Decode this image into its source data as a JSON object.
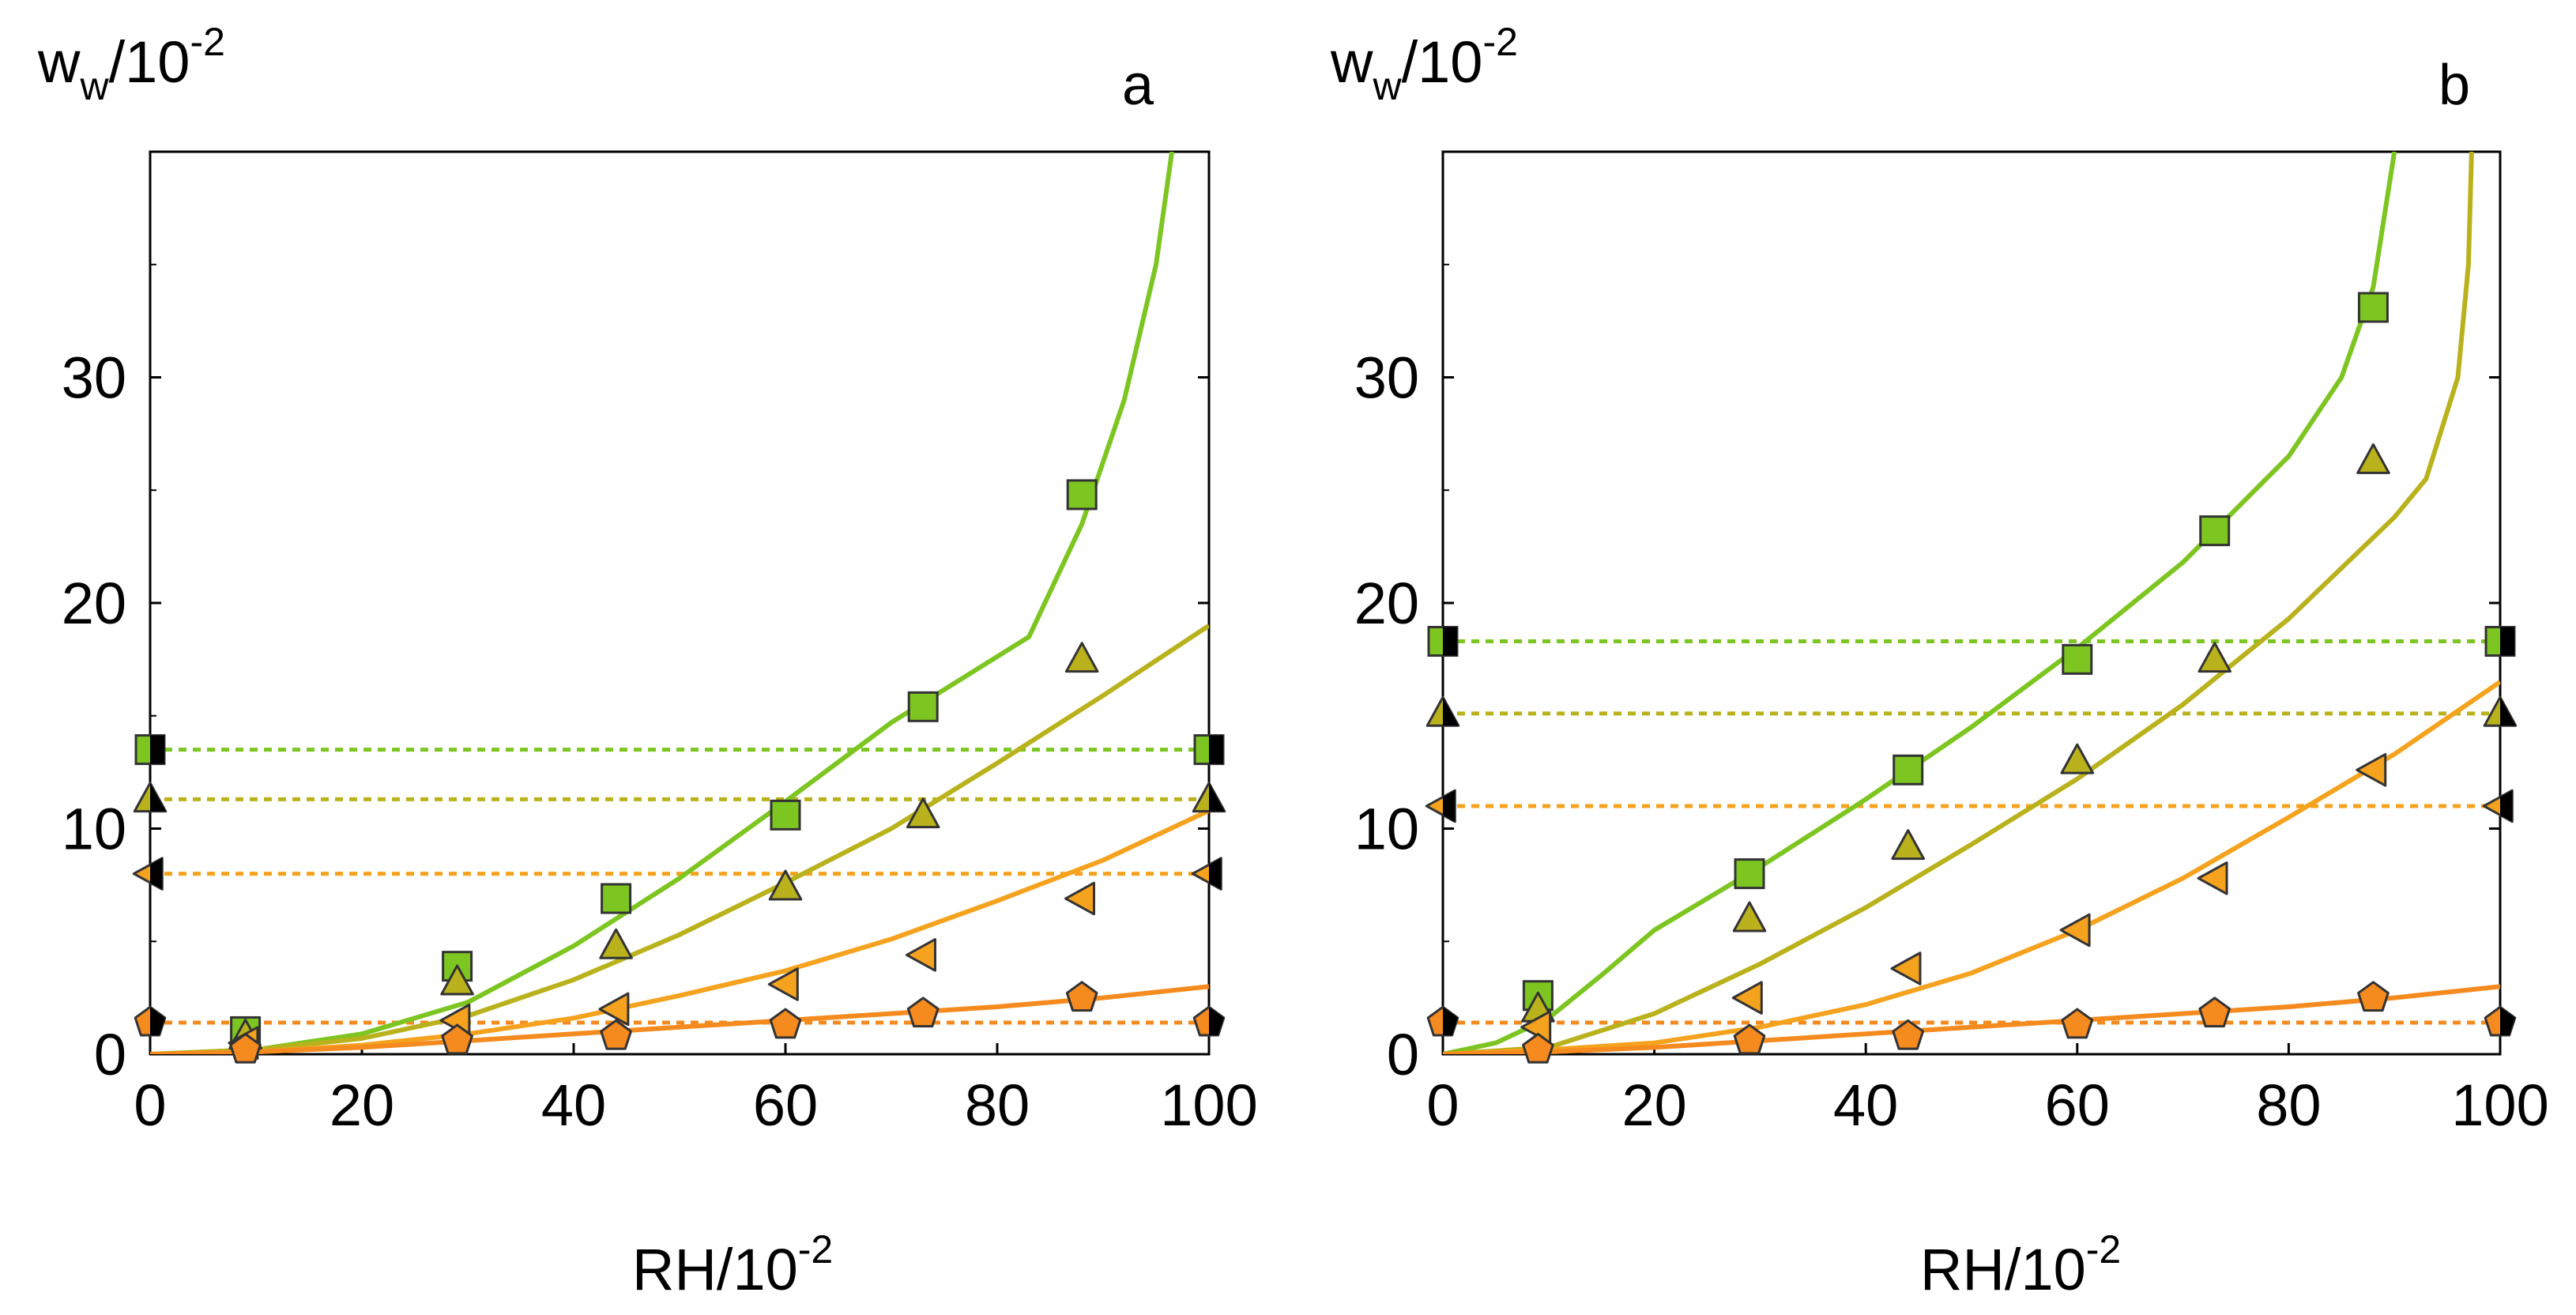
{
  "chart_data": [
    {
      "type": "scatter",
      "panel_label": "a",
      "ylabel": {
        "main": "w",
        "sub": "w",
        "denom": "/10",
        "exp": "-2"
      },
      "xlabel": {
        "main": "RH/10",
        "exp": "-2"
      },
      "xlim": [
        0,
        100
      ],
      "ylim": [
        0,
        40
      ],
      "xticks": [
        "0",
        "20",
        "40",
        "60",
        "80",
        "100"
      ],
      "yticks": [
        "0",
        "10",
        "20",
        "30"
      ],
      "colors": {
        "green": "#7dc520",
        "olive": "#b9b21d",
        "orange": "#f5a21e",
        "deep": "#f58a1e"
      },
      "series": [
        {
          "name": "square",
          "marker": "square",
          "color": "#7dc520",
          "points": [
            [
              9,
              1.0
            ],
            [
              29,
              3.9
            ],
            [
              44,
              6.9
            ],
            [
              60,
              10.6
            ],
            [
              73,
              15.4
            ],
            [
              88,
              24.8
            ]
          ],
          "fit": [
            [
              0,
              0
            ],
            [
              10,
              0.2
            ],
            [
              20,
              0.9
            ],
            [
              30,
              2.3
            ],
            [
              40,
              4.8
            ],
            [
              50,
              7.8
            ],
            [
              60,
              11.2
            ],
            [
              70,
              14.7
            ],
            [
              83,
              18.5
            ],
            [
              88,
              23.5
            ],
            [
              92,
              29.0
            ],
            [
              95,
              35.0
            ],
            [
              96.5,
              40.0
            ]
          ],
          "dry_level": 13.5,
          "dry_side": "both"
        },
        {
          "name": "triangle",
          "marker": "triangle",
          "color": "#b9b21d",
          "points": [
            [
              9,
              0.8
            ],
            [
              29,
              3.2
            ],
            [
              44,
              4.8
            ],
            [
              60,
              7.4
            ],
            [
              73,
              10.6
            ],
            [
              88,
              17.5
            ]
          ],
          "fit": [
            [
              0,
              0
            ],
            [
              10,
              0.2
            ],
            [
              20,
              0.7
            ],
            [
              30,
              1.7
            ],
            [
              40,
              3.3
            ],
            [
              50,
              5.3
            ],
            [
              60,
              7.6
            ],
            [
              70,
              10.0
            ],
            [
              80,
              12.9
            ],
            [
              90,
              15.9
            ],
            [
              100,
              19.0
            ]
          ],
          "dry_level": 11.3,
          "dry_side": "both"
        },
        {
          "name": "left-triangle",
          "marker": "ltriangle",
          "color": "#f5a21e",
          "points": [
            [
              9,
              0.5
            ],
            [
              29,
              1.5
            ],
            [
              44,
              2.0
            ],
            [
              60,
              3.1
            ],
            [
              73,
              4.4
            ],
            [
              88,
              6.9
            ]
          ],
          "fit": [
            [
              0,
              0
            ],
            [
              10,
              0.1
            ],
            [
              20,
              0.4
            ],
            [
              30,
              0.9
            ],
            [
              40,
              1.6
            ],
            [
              50,
              2.6
            ],
            [
              60,
              3.7
            ],
            [
              70,
              5.1
            ],
            [
              80,
              6.8
            ],
            [
              90,
              8.6
            ],
            [
              100,
              10.8
            ]
          ],
          "dry_level": 8.0,
          "dry_side": "both"
        },
        {
          "name": "pentagon",
          "marker": "pentagon",
          "color": "#f58a1e",
          "points": [
            [
              9,
              0.2
            ],
            [
              29,
              0.6
            ],
            [
              44,
              0.8
            ],
            [
              60,
              1.3
            ],
            [
              73,
              1.8
            ],
            [
              88,
              2.5
            ]
          ],
          "fit": [
            [
              0,
              0
            ],
            [
              10,
              0.1
            ],
            [
              20,
              0.3
            ],
            [
              30,
              0.6
            ],
            [
              40,
              0.9
            ],
            [
              50,
              1.2
            ],
            [
              60,
              1.5
            ],
            [
              70,
              1.8
            ],
            [
              80,
              2.1
            ],
            [
              90,
              2.5
            ],
            [
              100,
              3.0
            ]
          ],
          "dry_level": 1.4,
          "dry_side": "both"
        }
      ]
    },
    {
      "type": "scatter",
      "panel_label": "b",
      "ylabel": {
        "main": "w",
        "sub": "w",
        "denom": "/10",
        "exp": "-2"
      },
      "xlabel": {
        "main": "RH/10",
        "exp": "-2"
      },
      "xlim": [
        0,
        100
      ],
      "ylim": [
        0,
        40
      ],
      "xticks": [
        "0",
        "20",
        "40",
        "60",
        "80",
        "100"
      ],
      "yticks": [
        "0",
        "10",
        "20",
        "30"
      ],
      "colors": {
        "green": "#7dc520",
        "olive": "#b9b21d",
        "orange": "#f5a21e",
        "deep": "#f58a1e"
      },
      "series": [
        {
          "name": "square",
          "marker": "square",
          "color": "#7dc520",
          "points": [
            [
              9,
              2.6
            ],
            [
              29,
              8.0
            ],
            [
              44,
              12.6
            ],
            [
              60,
              17.5
            ],
            [
              73,
              23.2
            ],
            [
              88,
              33.1
            ]
          ],
          "fit": [
            [
              0,
              0
            ],
            [
              5,
              0.5
            ],
            [
              10,
              1.6
            ],
            [
              15,
              3.5
            ],
            [
              20,
              5.5
            ],
            [
              30,
              8.3
            ],
            [
              40,
              11.3
            ],
            [
              50,
              14.5
            ],
            [
              60,
              18.0
            ],
            [
              70,
              21.8
            ],
            [
              80,
              26.5
            ],
            [
              85,
              30.0
            ],
            [
              88,
              34.0
            ],
            [
              90,
              40.0
            ]
          ],
          "dry_level": 18.3,
          "dry_side": "both"
        },
        {
          "name": "triangle",
          "marker": "triangle",
          "color": "#b9b21d",
          "points": [
            [
              9,
              2.0
            ],
            [
              29,
              6.0
            ],
            [
              44,
              9.2
            ],
            [
              60,
              13.0
            ],
            [
              73,
              17.5
            ],
            [
              88,
              26.3
            ]
          ],
          "fit": [
            [
              0,
              0
            ],
            [
              10,
              0.3
            ],
            [
              20,
              1.8
            ],
            [
              30,
              4.0
            ],
            [
              40,
              6.5
            ],
            [
              50,
              9.3
            ],
            [
              60,
              12.2
            ],
            [
              70,
              15.5
            ],
            [
              80,
              19.3
            ],
            [
              90,
              23.8
            ],
            [
              93,
              25.5
            ],
            [
              96,
              30.0
            ],
            [
              97,
              35.0
            ],
            [
              97.3,
              40.0
            ]
          ],
          "dry_level": 15.1,
          "dry_side": "both"
        },
        {
          "name": "left-triangle",
          "marker": "ltriangle",
          "color": "#f5a21e",
          "points": [
            [
              9,
              1.2
            ],
            [
              29,
              2.5
            ],
            [
              44,
              3.8
            ],
            [
              60,
              5.5
            ],
            [
              73,
              7.8
            ],
            [
              88,
              12.6
            ]
          ],
          "fit": [
            [
              0,
              0
            ],
            [
              10,
              0.2
            ],
            [
              20,
              0.5
            ],
            [
              30,
              1.2
            ],
            [
              40,
              2.2
            ],
            [
              50,
              3.6
            ],
            [
              60,
              5.5
            ],
            [
              70,
              7.8
            ],
            [
              80,
              10.5
            ],
            [
              90,
              13.3
            ],
            [
              100,
              16.5
            ]
          ],
          "dry_level": 11.0,
          "dry_side": "both"
        },
        {
          "name": "pentagon",
          "marker": "pentagon",
          "color": "#f58a1e",
          "points": [
            [
              9,
              0.2
            ],
            [
              29,
              0.6
            ],
            [
              44,
              0.8
            ],
            [
              60,
              1.3
            ],
            [
              73,
              1.8
            ],
            [
              88,
              2.5
            ]
          ],
          "fit": [
            [
              0,
              0
            ],
            [
              10,
              0.1
            ],
            [
              20,
              0.3
            ],
            [
              30,
              0.6
            ],
            [
              40,
              0.9
            ],
            [
              50,
              1.2
            ],
            [
              60,
              1.5
            ],
            [
              70,
              1.8
            ],
            [
              80,
              2.1
            ],
            [
              90,
              2.5
            ],
            [
              100,
              3.0
            ]
          ],
          "dry_level": 1.4,
          "dry_side": "both"
        }
      ]
    }
  ]
}
